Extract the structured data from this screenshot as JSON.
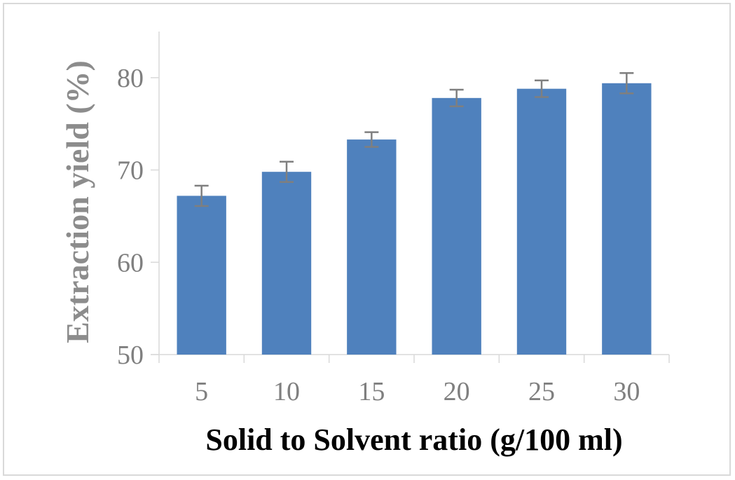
{
  "chart_data": {
    "type": "bar",
    "title": "",
    "xlabel": "Solid to Solvent ratio (g/100 ml)",
    "ylabel": "Extraction yield (%)",
    "categories": [
      "5",
      "10",
      "15",
      "20",
      "25",
      "30"
    ],
    "values": [
      67.2,
      69.8,
      73.3,
      77.8,
      78.8,
      79.4
    ],
    "error": [
      1.1,
      1.1,
      0.8,
      0.9,
      0.9,
      1.1
    ],
    "ylim": [
      50,
      85
    ],
    "yticks": [
      50,
      60,
      70,
      80
    ],
    "ytick_labels": [
      "50",
      "60",
      "70",
      "80"
    ],
    "grid": false,
    "legend": "none",
    "colors": {
      "bar": "#4f81bd",
      "error_bar": "#7f7f7f",
      "axis": "#d9d9d9"
    }
  }
}
